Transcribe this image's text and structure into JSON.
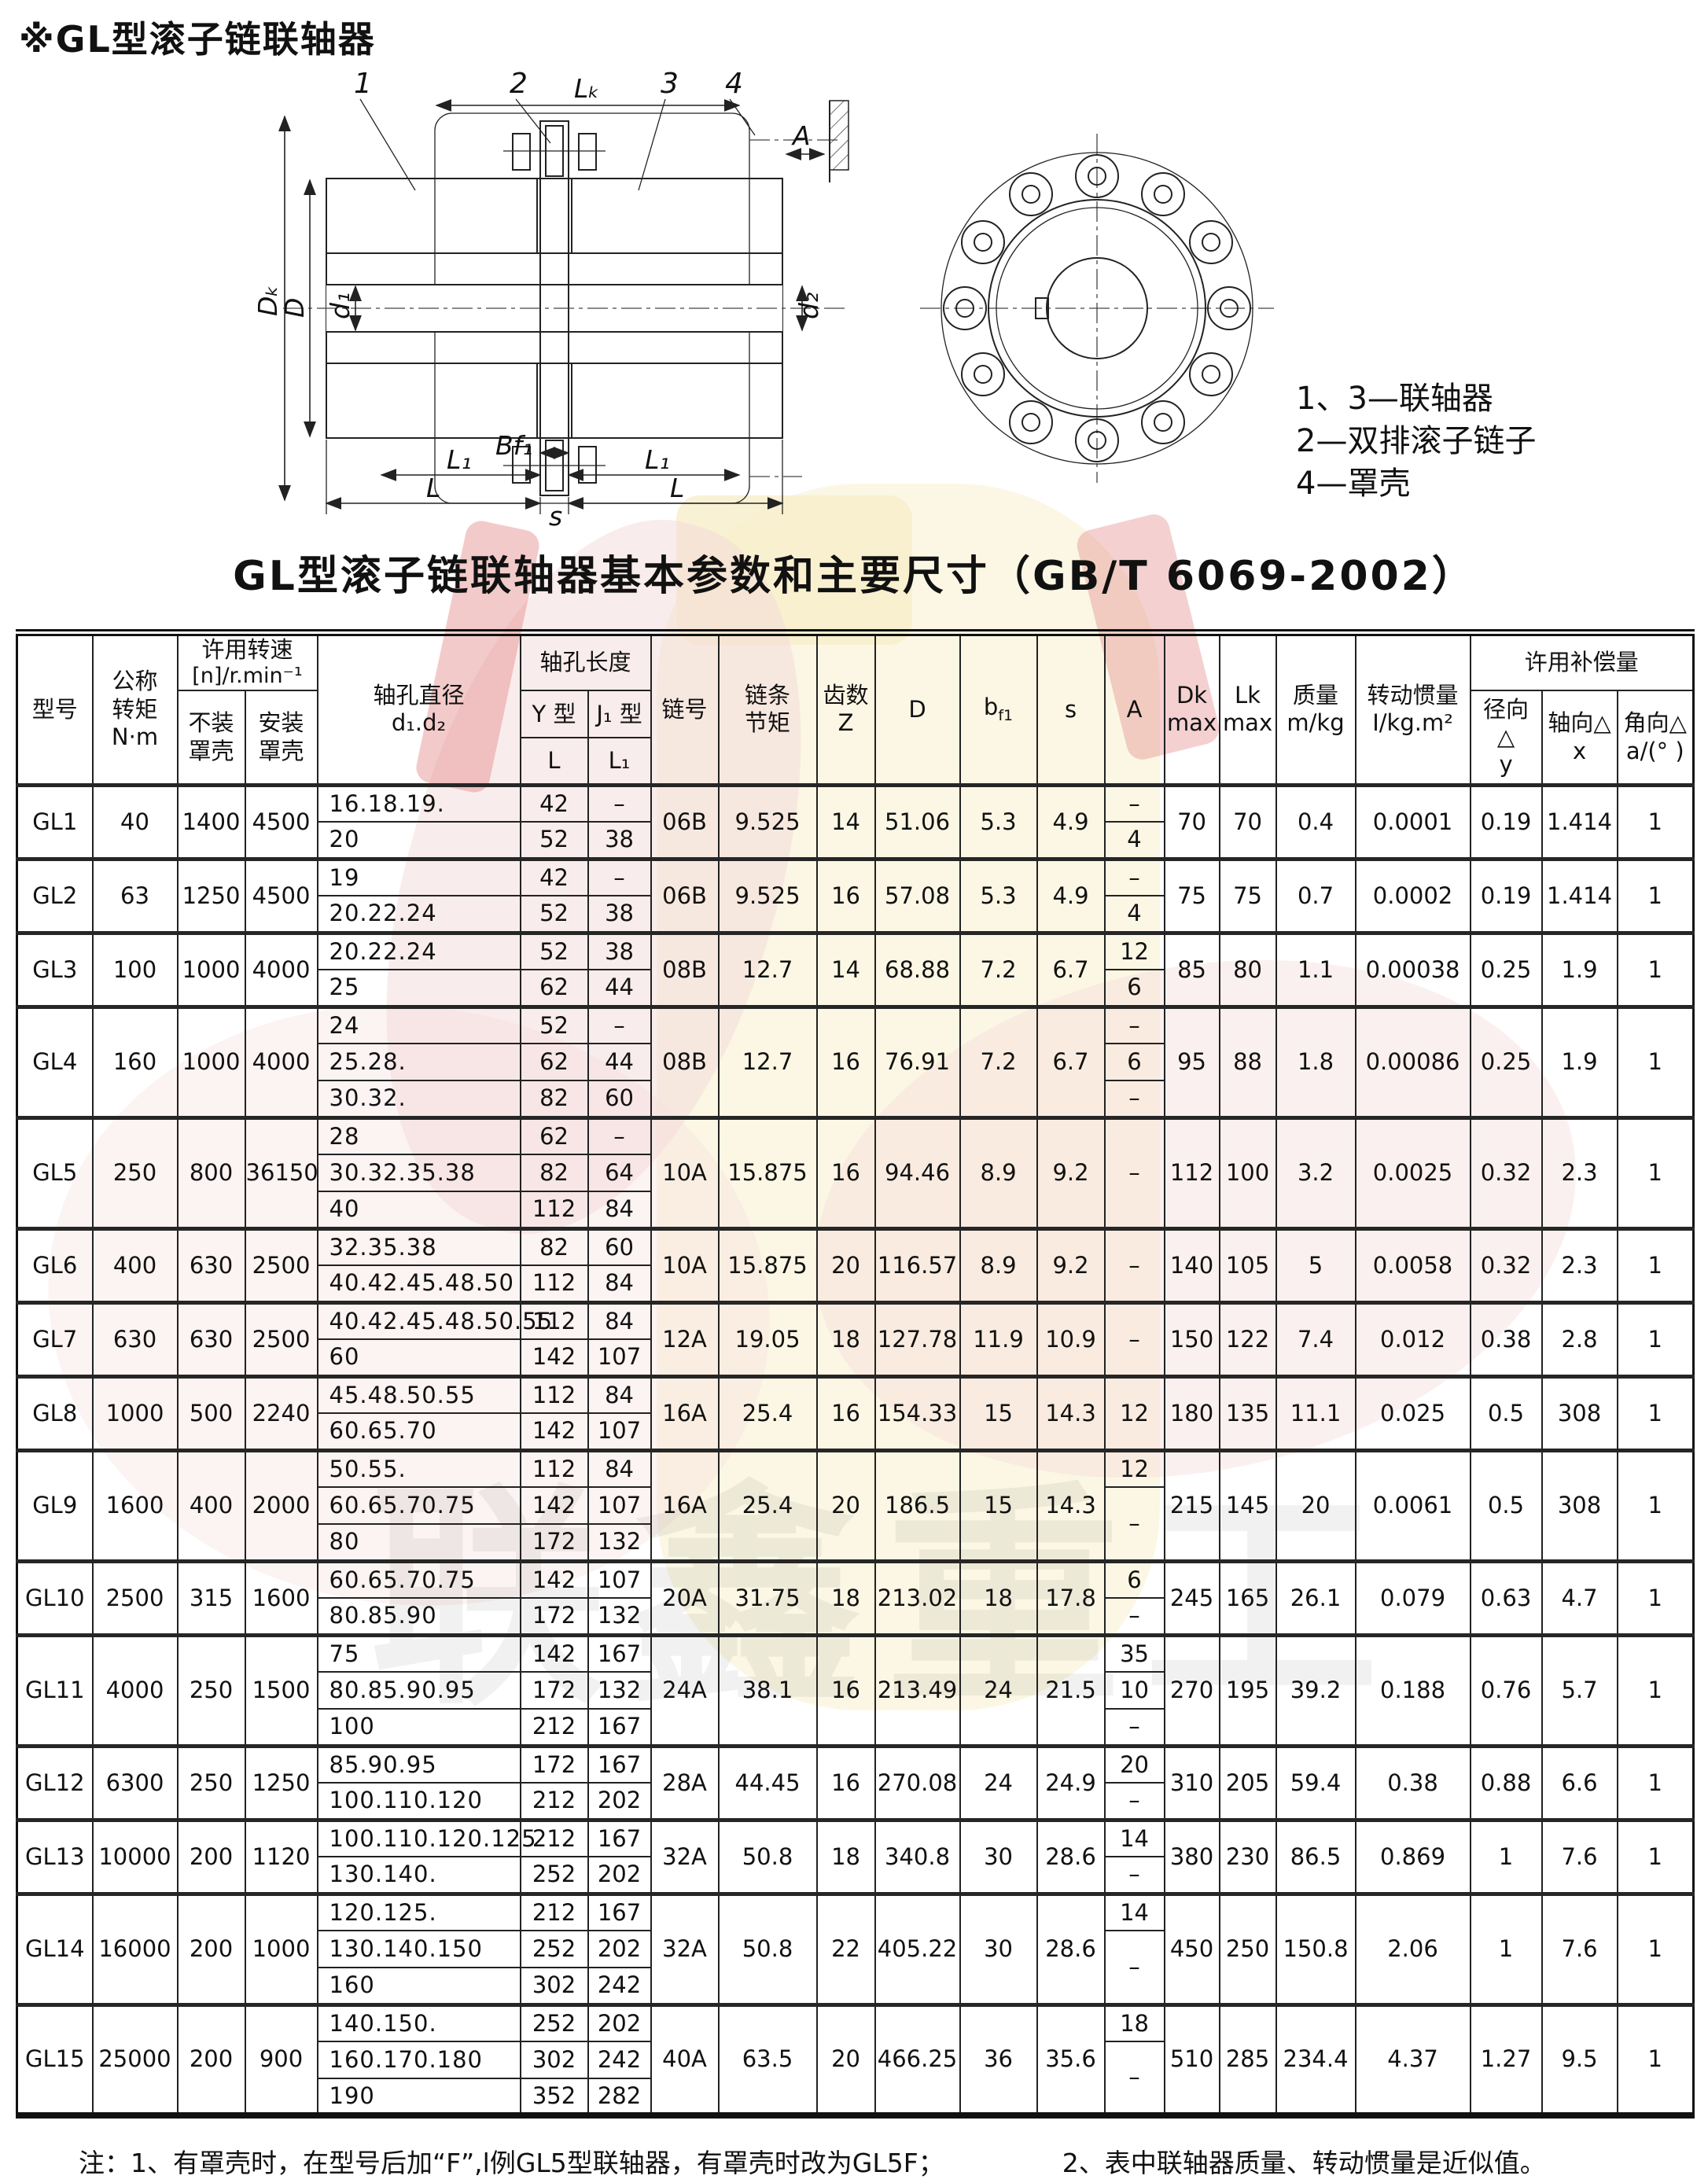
{
  "page_title": "※GL型滚子链联轴器",
  "table_title": "GL型滚子链联轴器基本参数和主要尺寸（GB/T 6069-2002）",
  "drawing": {
    "callouts": [
      "1",
      "2",
      "3",
      "4"
    ],
    "labels": {
      "lk": "Lₖ",
      "a": "A",
      "dk": "Dₖ",
      "dd": "D",
      "d1": "d₁",
      "d2": "d₂",
      "l1a": "L₁",
      "bf1": "Bf₁",
      "l1b": "L₁",
      "la": "L",
      "s": "s",
      "lb": "L"
    },
    "legend": [
      "1、3—联轴器",
      "2—双排滚子链子",
      "4—罩壳"
    ]
  },
  "header": {
    "model": "型号",
    "torque_l1": "公称",
    "torque_l2": "转矩",
    "torque_l3": "N·m",
    "speed_l1": "许用转速",
    "speed_l2": "[n]/r.min⁻¹",
    "no_cover_l1": "不装",
    "no_cover_l2": "罩壳",
    "with_cover_l1": "安装",
    "with_cover_l2": "罩壳",
    "bore_dia_l1": "轴孔直径",
    "bore_dia_l2": "d₁.d₂",
    "bore_len": "轴孔长度",
    "y_type": "Y 型",
    "j_type": "J₁ 型",
    "L": "L",
    "L1": "L₁",
    "chain_no": "链号",
    "pitch_l1": "链条",
    "pitch_l2": "节矩",
    "teeth_l1": "齿数",
    "teeth_l2": "Z",
    "D": "D",
    "bf1_base": "b",
    "bf1_sub": "f1",
    "s": "s",
    "A": "A",
    "dk_l1": "Dk",
    "dk_l2": "max",
    "lk_l1": "Lk",
    "lk_l2": "max",
    "mass_l1": "质量",
    "mass_l2": "m/kg",
    "inertia_l1": "转动惯量",
    "inertia_l2": "I/kg.m²",
    "comp": "许用补偿量",
    "radial_l1": "径向 △",
    "radial_l2": "y",
    "axial_l1": "轴向△",
    "axial_l2": "x",
    "angular_l1": "角向△",
    "angular_l2": "a/(°  )"
  },
  "rows": [
    {
      "model": "GL1",
      "torque": "40",
      "speed_no_cover": "1400",
      "speed_with_cover": "4500",
      "bores": [
        {
          "d": "16.18.19.",
          "L": "42",
          "L1": "–"
        },
        {
          "d": "20",
          "L": "52",
          "L1": "38"
        }
      ],
      "chain_no": "06B",
      "pitch": "9.525",
      "teeth": "14",
      "D": "51.06",
      "bf1": "5.3",
      "s": "4.9",
      "A": [
        {
          "v": "–",
          "span": 1
        },
        {
          "v": "4",
          "span": 1
        }
      ],
      "Dk": "70",
      "Lk": "70",
      "mass": "0.4",
      "inertia": "0.0001",
      "radial": "0.19",
      "axial": "1.414",
      "angular": "1"
    },
    {
      "model": "GL2",
      "torque": "63",
      "speed_no_cover": "1250",
      "speed_with_cover": "4500",
      "bores": [
        {
          "d": "19",
          "L": "42",
          "L1": "–"
        },
        {
          "d": "20.22.24",
          "L": "52",
          "L1": "38"
        }
      ],
      "chain_no": "06B",
      "pitch": "9.525",
      "teeth": "16",
      "D": "57.08",
      "bf1": "5.3",
      "s": "4.9",
      "A": [
        {
          "v": "–",
          "span": 1
        },
        {
          "v": "4",
          "span": 1
        }
      ],
      "Dk": "75",
      "Lk": "75",
      "mass": "0.7",
      "inertia": "0.0002",
      "radial": "0.19",
      "axial": "1.414",
      "angular": "1"
    },
    {
      "model": "GL3",
      "torque": "100",
      "speed_no_cover": "1000",
      "speed_with_cover": "4000",
      "bores": [
        {
          "d": "20.22.24",
          "L": "52",
          "L1": "38"
        },
        {
          "d": "25",
          "L": "62",
          "L1": "44"
        }
      ],
      "chain_no": "08B",
      "pitch": "12.7",
      "teeth": "14",
      "D": "68.88",
      "bf1": "7.2",
      "s": "6.7",
      "A": [
        {
          "v": "12",
          "span": 1
        },
        {
          "v": "6",
          "span": 1
        }
      ],
      "Dk": "85",
      "Lk": "80",
      "mass": "1.1",
      "inertia": "0.00038",
      "radial": "0.25",
      "axial": "1.9",
      "angular": "1"
    },
    {
      "model": "GL4",
      "torque": "160",
      "speed_no_cover": "1000",
      "speed_with_cover": "4000",
      "bores": [
        {
          "d": "24",
          "L": "52",
          "L1": "–"
        },
        {
          "d": "25.28.",
          "L": "62",
          "L1": "44"
        },
        {
          "d": "30.32.",
          "L": "82",
          "L1": "60"
        }
      ],
      "chain_no": "08B",
      "pitch": "12.7",
      "teeth": "16",
      "D": "76.91",
      "bf1": "7.2",
      "s": "6.7",
      "A": [
        {
          "v": "–",
          "span": 1
        },
        {
          "v": "6",
          "span": 1
        },
        {
          "v": "–",
          "span": 1
        }
      ],
      "Dk": "95",
      "Lk": "88",
      "mass": "1.8",
      "inertia": "0.00086",
      "radial": "0.25",
      "axial": "1.9",
      "angular": "1"
    },
    {
      "model": "GL5",
      "torque": "250",
      "speed_no_cover": "800",
      "speed_with_cover": "36150",
      "bores": [
        {
          "d": "28",
          "L": "62",
          "L1": "–"
        },
        {
          "d": "30.32.35.38",
          "L": "82",
          "L1": "64"
        },
        {
          "d": "40",
          "L": "112",
          "L1": "84"
        }
      ],
      "chain_no": "10A",
      "pitch": "15.875",
      "teeth": "16",
      "D": "94.46",
      "bf1": "8.9",
      "s": "9.2",
      "A": [
        {
          "v": "–",
          "span": 3
        }
      ],
      "Dk": "112",
      "Lk": "100",
      "mass": "3.2",
      "inertia": "0.0025",
      "radial": "0.32",
      "axial": "2.3",
      "angular": "1"
    },
    {
      "model": "GL6",
      "torque": "400",
      "speed_no_cover": "630",
      "speed_with_cover": "2500",
      "bores": [
        {
          "d": "32.35.38",
          "L": "82",
          "L1": "60"
        },
        {
          "d": "40.42.45.48.50",
          "L": "112",
          "L1": "84"
        }
      ],
      "chain_no": "10A",
      "pitch": "15.875",
      "teeth": "20",
      "D": "116.57",
      "bf1": "8.9",
      "s": "9.2",
      "A": [
        {
          "v": "–",
          "span": 2
        }
      ],
      "Dk": "140",
      "Lk": "105",
      "mass": "5",
      "inertia": "0.0058",
      "radial": "0.32",
      "axial": "2.3",
      "angular": "1"
    },
    {
      "model": "GL7",
      "torque": "630",
      "speed_no_cover": "630",
      "speed_with_cover": "2500",
      "bores": [
        {
          "d": "40.42.45.48.50.55",
          "L": "112",
          "L1": "84"
        },
        {
          "d": "60",
          "L": "142",
          "L1": "107"
        }
      ],
      "chain_no": "12A",
      "pitch": "19.05",
      "teeth": "18",
      "D": "127.78",
      "bf1": "11.9",
      "s": "10.9",
      "A": [
        {
          "v": "–",
          "span": 2
        }
      ],
      "Dk": "150",
      "Lk": "122",
      "mass": "7.4",
      "inertia": "0.012",
      "radial": "0.38",
      "axial": "2.8",
      "angular": "1"
    },
    {
      "model": "GL8",
      "torque": "1000",
      "speed_no_cover": "500",
      "speed_with_cover": "2240",
      "bores": [
        {
          "d": "45.48.50.55",
          "L": "112",
          "L1": "84"
        },
        {
          "d": "60.65.70",
          "L": "142",
          "L1": "107"
        }
      ],
      "chain_no": "16A",
      "pitch": "25.4",
      "teeth": "16",
      "D": "154.33",
      "bf1": "15",
      "s": "14.3",
      "A": [
        {
          "v": "12",
          "span": 2
        }
      ],
      "Dk": "180",
      "Lk": "135",
      "mass": "11.1",
      "inertia": "0.025",
      "radial": "0.5",
      "axial": "308",
      "angular": "1"
    },
    {
      "model": "GL9",
      "torque": "1600",
      "speed_no_cover": "400",
      "speed_with_cover": "2000",
      "bores": [
        {
          "d": "50.55.",
          "L": "112",
          "L1": "84"
        },
        {
          "d": "60.65.70.75",
          "L": "142",
          "L1": "107"
        },
        {
          "d": "80",
          "L": "172",
          "L1": "132"
        }
      ],
      "chain_no": "16A",
      "pitch": "25.4",
      "teeth": "20",
      "D": "186.5",
      "bf1": "15",
      "s": "14.3",
      "A": [
        {
          "v": "12",
          "span": 1
        },
        {
          "v": "–",
          "span": 2
        }
      ],
      "Dk": "215",
      "Lk": "145",
      "mass": "20",
      "inertia": "0.0061",
      "radial": "0.5",
      "axial": "308",
      "angular": "1"
    },
    {
      "model": "GL10",
      "torque": "2500",
      "speed_no_cover": "315",
      "speed_with_cover": "1600",
      "bores": [
        {
          "d": "60.65.70.75",
          "L": "142",
          "L1": "107"
        },
        {
          "d": "80.85.90",
          "L": "172",
          "L1": "132"
        }
      ],
      "chain_no": "20A",
      "pitch": "31.75",
      "teeth": "18",
      "D": "213.02",
      "bf1": "18",
      "s": "17.8",
      "A": [
        {
          "v": "6",
          "span": 1
        },
        {
          "v": "–",
          "span": 1
        }
      ],
      "Dk": "245",
      "Lk": "165",
      "mass": "26.1",
      "inertia": "0.079",
      "radial": "0.63",
      "axial": "4.7",
      "angular": "1"
    },
    {
      "model": "GL11",
      "torque": "4000",
      "speed_no_cover": "250",
      "speed_with_cover": "1500",
      "bores": [
        {
          "d": "75",
          "L": "142",
          "L1": "167"
        },
        {
          "d": "80.85.90.95",
          "L": "172",
          "L1": "132"
        },
        {
          "d": "100",
          "L": "212",
          "L1": "167"
        }
      ],
      "chain_no": "24A",
      "pitch": "38.1",
      "teeth": "16",
      "D": "213.49",
      "bf1": "24",
      "s": "21.5",
      "A": [
        {
          "v": "35",
          "span": 1
        },
        {
          "v": "10",
          "span": 1
        },
        {
          "v": "–",
          "span": 1
        }
      ],
      "Dk": "270",
      "Lk": "195",
      "mass": "39.2",
      "inertia": "0.188",
      "radial": "0.76",
      "axial": "5.7",
      "angular": "1"
    },
    {
      "model": "GL12",
      "torque": "6300",
      "speed_no_cover": "250",
      "speed_with_cover": "1250",
      "bores": [
        {
          "d": "85.90.95",
          "L": "172",
          "L1": "167"
        },
        {
          "d": "100.110.120",
          "L": "212",
          "L1": "202"
        }
      ],
      "chain_no": "28A",
      "pitch": "44.45",
      "teeth": "16",
      "D": "270.08",
      "bf1": "24",
      "s": "24.9",
      "A": [
        {
          "v": "20",
          "span": 1
        },
        {
          "v": "–",
          "span": 1
        }
      ],
      "Dk": "310",
      "Lk": "205",
      "mass": "59.4",
      "inertia": "0.38",
      "radial": "0.88",
      "axial": "6.6",
      "angular": "1"
    },
    {
      "model": "GL13",
      "torque": "10000",
      "speed_no_cover": "200",
      "speed_with_cover": "1120",
      "bores": [
        {
          "d": "100.110.120.125",
          "L": "212",
          "L1": "167"
        },
        {
          "d": "130.140.",
          "L": "252",
          "L1": "202"
        }
      ],
      "chain_no": "32A",
      "pitch": "50.8",
      "teeth": "18",
      "D": "340.8",
      "bf1": "30",
      "s": "28.6",
      "A": [
        {
          "v": "14",
          "span": 1
        },
        {
          "v": "–",
          "span": 1
        }
      ],
      "Dk": "380",
      "Lk": "230",
      "mass": "86.5",
      "inertia": "0.869",
      "radial": "1",
      "axial": "7.6",
      "angular": "1"
    },
    {
      "model": "GL14",
      "torque": "16000",
      "speed_no_cover": "200",
      "speed_with_cover": "1000",
      "bores": [
        {
          "d": "120.125.",
          "L": "212",
          "L1": "167"
        },
        {
          "d": "130.140.150",
          "L": "252",
          "L1": "202"
        },
        {
          "d": "160",
          "L": "302",
          "L1": "242"
        }
      ],
      "chain_no": "32A",
      "pitch": "50.8",
      "teeth": "22",
      "D": "405.22",
      "bf1": "30",
      "s": "28.6",
      "A": [
        {
          "v": "14",
          "span": 1
        },
        {
          "v": "–",
          "span": 2
        }
      ],
      "Dk": "450",
      "Lk": "250",
      "mass": "150.8",
      "inertia": "2.06",
      "radial": "1",
      "axial": "7.6",
      "angular": "1"
    },
    {
      "model": "GL15",
      "torque": "25000",
      "speed_no_cover": "200",
      "speed_with_cover": "900",
      "bores": [
        {
          "d": "140.150.",
          "L": "252",
          "L1": "202"
        },
        {
          "d": "160.170.180",
          "L": "302",
          "L1": "242"
        },
        {
          "d": "190",
          "L": "352",
          "L1": "282"
        }
      ],
      "chain_no": "40A",
      "pitch": "63.5",
      "teeth": "20",
      "D": "466.25",
      "bf1": "36",
      "s": "35.6",
      "A": [
        {
          "v": "18",
          "span": 1
        },
        {
          "v": "–",
          "span": 2
        }
      ],
      "Dk": "510",
      "Lk": "285",
      "mass": "234.4",
      "inertia": "4.37",
      "radial": "1.27",
      "axial": "9.5",
      "angular": "1"
    }
  ],
  "notes": {
    "note1": "注：1、有罩壳时，在型号后加“F”,l例GL5型联轴器，有罩壳时改为GL5F；",
    "note2": "2、表中联轴器质量、转动惯量是近似值。"
  },
  "watermark_text": "联鑫重工",
  "colors": {
    "line": "#222222",
    "watermark_yellow": "#f9f1d2",
    "watermark_pink": "#f3d9d9",
    "watermark_red": "#e48a8a"
  }
}
